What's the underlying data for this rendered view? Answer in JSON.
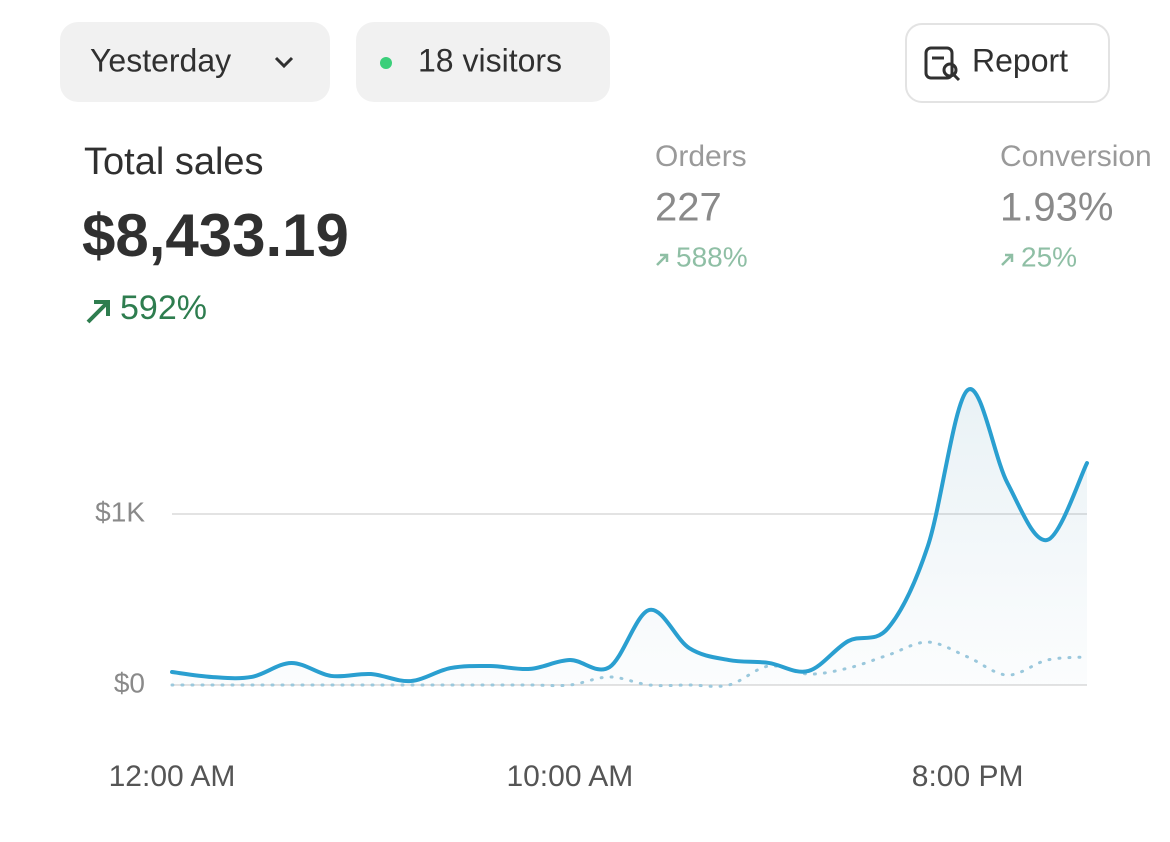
{
  "header": {
    "period": "Yesterday",
    "visitors": "18 visitors",
    "report": "Report"
  },
  "metrics": [
    {
      "title": "Total sales",
      "value": "$8,433.19",
      "change": "592%"
    },
    {
      "title": "Orders",
      "value": "227",
      "change": "588%"
    },
    {
      "title": "Conversion",
      "value": "1.93%",
      "change": "25%"
    }
  ],
  "chart_data": {
    "type": "line",
    "categories": [
      "12:00 AM",
      null,
      null,
      null,
      null,
      null,
      null,
      null,
      null,
      null,
      "10:00 AM",
      null,
      null,
      null,
      null,
      null,
      null,
      null,
      null,
      null,
      "8:00 PM",
      null,
      null,
      null
    ],
    "series": [
      {
        "color": "#2a9fd0",
        "area": true,
        "values": [
          76,
          47,
          47,
          129,
          53,
          64,
          23,
          99,
          111,
          94,
          146,
          105,
          439,
          216,
          146,
          129,
          82,
          257,
          333,
          813,
          1725,
          1181,
          848,
          1298
        ]
      },
      {
        "color": "#9cc9dd",
        "dashed": true,
        "values": [
          0,
          0,
          0,
          0,
          0,
          0,
          0,
          0,
          0,
          0,
          0,
          47,
          0,
          0,
          0,
          111,
          64,
          99,
          175,
          251,
          164,
          58,
          146,
          164
        ]
      }
    ],
    "ylim": [
      0,
      2000
    ],
    "yticks": [
      {
        "value": 0,
        "label": "$0"
      },
      {
        "value": 1000,
        "label": "$1K"
      }
    ],
    "grid": true
  }
}
